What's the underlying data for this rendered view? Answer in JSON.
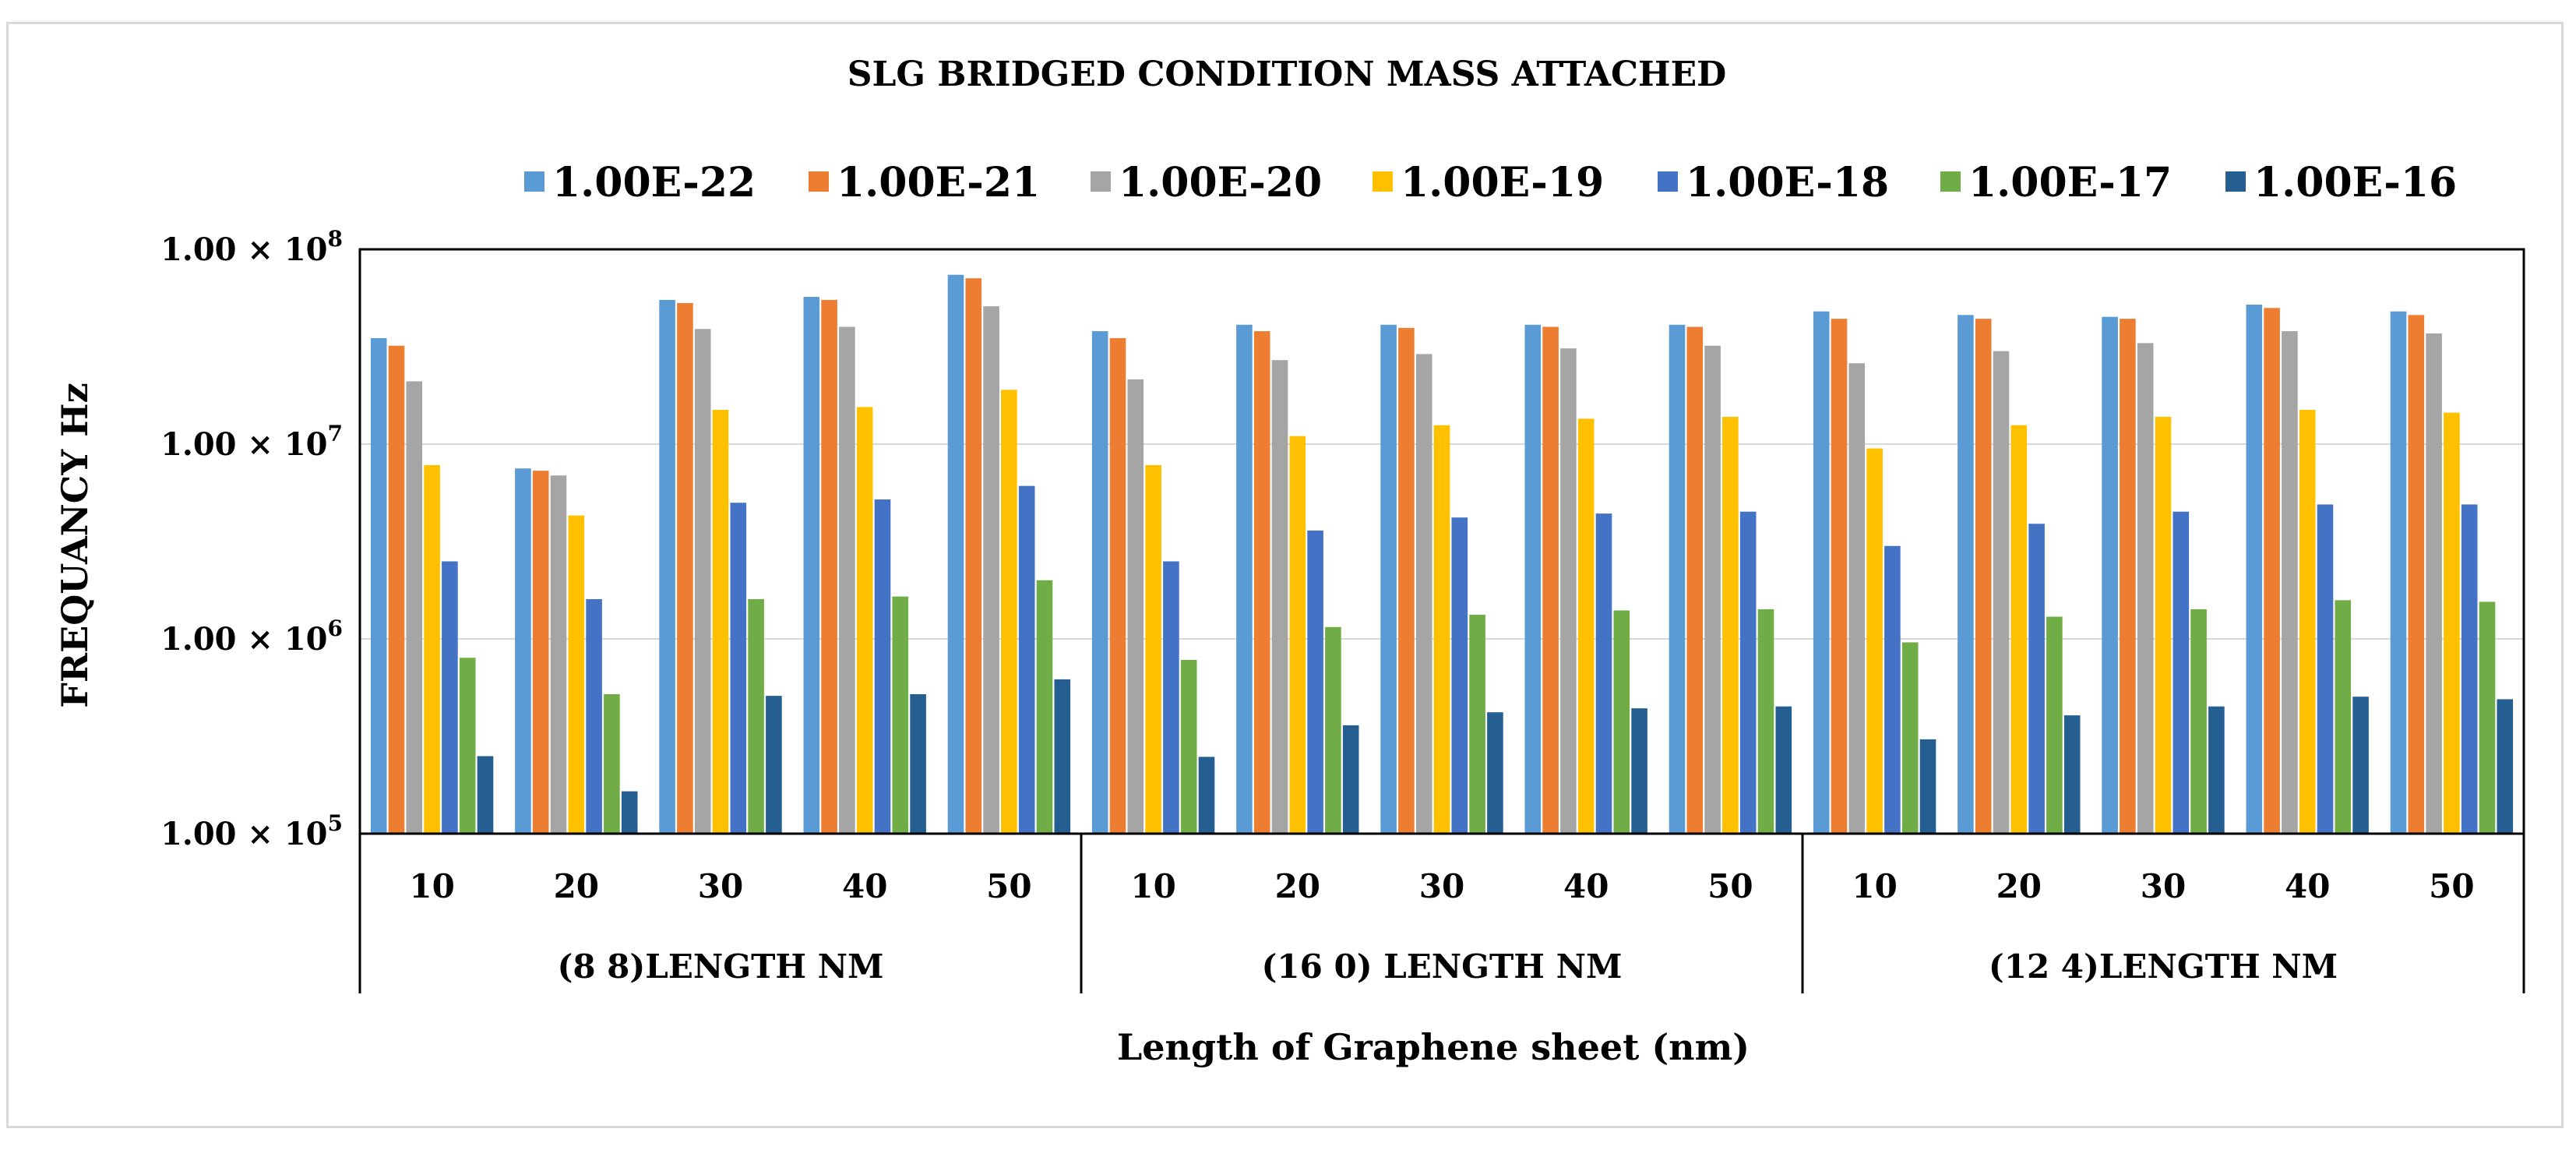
{
  "chart_data": {
    "type": "bar",
    "title": "SLG BRIDGED CONDITION  MASS ATTACHED",
    "ylabel": "FREQUANCY Hz",
    "xlabel": "Length of Graphene sheet (nm)",
    "y_scale": "log",
    "ylim": [
      100000,
      100000000
    ],
    "y_ticks": [
      {
        "value": 100000,
        "mantissa": "1.00 × 10",
        "exp": "5"
      },
      {
        "value": 1000000,
        "mantissa": "1.00 × 10",
        "exp": "6"
      },
      {
        "value": 10000000,
        "mantissa": "1.00 × 10",
        "exp": "7"
      },
      {
        "value": 100000000,
        "mantissa": "1.00 × 10",
        "exp": "8"
      }
    ],
    "grid": true,
    "legend_position": "top",
    "categories": [
      "10",
      "20",
      "30",
      "40",
      "50",
      "10",
      "20",
      "30",
      "40",
      "50",
      "10",
      "20",
      "30",
      "40",
      "50"
    ],
    "groups": [
      {
        "label": "(8 8)LENGTH NM",
        "count": 5
      },
      {
        "label": "(16 0) LENGTH NM",
        "count": 5
      },
      {
        "label": "(12 4)LENGTH NM",
        "count": 5
      }
    ],
    "series": [
      {
        "name": "1.00E-22",
        "color": "#5B9BD5",
        "values": [
          35000000,
          7500000,
          55000000,
          57000000,
          74000000,
          38000000,
          41000000,
          41000000,
          41000000,
          41000000,
          48000000,
          46000000,
          45000000,
          52000000,
          48000000
        ]
      },
      {
        "name": "1.00E-21",
        "color": "#ED7D31",
        "values": [
          32000000,
          7300000,
          53000000,
          55000000,
          71000000,
          35000000,
          38000000,
          39500000,
          40000000,
          40000000,
          44000000,
          44000000,
          44000000,
          50000000,
          46000000
        ]
      },
      {
        "name": "1.00E-20",
        "color": "#A5A5A5",
        "values": [
          21000000,
          6900000,
          39000000,
          40000000,
          51000000,
          21500000,
          27000000,
          29000000,
          31000000,
          32000000,
          26000000,
          30000000,
          33000000,
          38000000,
          37000000
        ]
      },
      {
        "name": "1.00E-19",
        "color": "#FFC000",
        "values": [
          7800000,
          4300000,
          15000000,
          15500000,
          19000000,
          7800000,
          11000000,
          12500000,
          13500000,
          13800000,
          9500000,
          12500000,
          13800000,
          15000000,
          14500000
        ]
      },
      {
        "name": "1.00E-18",
        "color": "#4472C4",
        "values": [
          2500000,
          1600000,
          5000000,
          5200000,
          6100000,
          2500000,
          3600000,
          4200000,
          4400000,
          4500000,
          3000000,
          3900000,
          4500000,
          4900000,
          4900000
        ]
      },
      {
        "name": "1.00E-17",
        "color": "#70AD47",
        "values": [
          800000,
          520000,
          1600000,
          1650000,
          2000000,
          780000,
          1150000,
          1330000,
          1400000,
          1420000,
          960000,
          1300000,
          1420000,
          1580000,
          1550000
        ]
      },
      {
        "name": "1.00E-16",
        "color": "#255E91",
        "values": [
          250000,
          165000,
          510000,
          520000,
          620000,
          248000,
          360000,
          420000,
          440000,
          450000,
          305000,
          405000,
          450000,
          505000,
          490000
        ]
      }
    ]
  }
}
